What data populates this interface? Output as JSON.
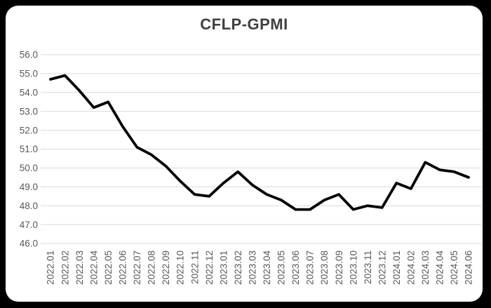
{
  "chart_data": {
    "type": "line",
    "title": "CFLP-GPMI",
    "categories": [
      "2022.01",
      "2022.02",
      "2022.03",
      "2022.04",
      "2022.05",
      "2022.06",
      "2022.07",
      "2022.08",
      "2022.09",
      "2022.10",
      "2022.11",
      "2022.12",
      "2023.01",
      "2023.02",
      "2023.03",
      "2023.04",
      "2023.05",
      "2023.06",
      "2023.07",
      "2023.08",
      "2023.09",
      "2023.10",
      "2023.11",
      "2023.12",
      "2024.01",
      "2024.02",
      "2024.03",
      "2024.04",
      "2024.05",
      "2024.06"
    ],
    "series": [
      {
        "name": "CFLP-GPMI",
        "values": [
          54.7,
          54.9,
          54.1,
          53.2,
          53.5,
          52.2,
          51.1,
          50.7,
          50.1,
          49.3,
          48.6,
          48.5,
          49.2,
          49.8,
          49.1,
          48.6,
          48.3,
          47.8,
          47.8,
          48.3,
          48.6,
          47.8,
          48.0,
          47.9,
          49.2,
          48.9,
          50.3,
          49.9,
          49.8,
          49.5
        ]
      }
    ],
    "ylim": [
      46.0,
      56.0
    ],
    "y_tick_step": 1.0,
    "y_tick_labels": [
      "56.0",
      "55.0",
      "54.0",
      "53.0",
      "52.0",
      "51.0",
      "50.0",
      "49.0",
      "48.0",
      "47.0",
      "46.0"
    ],
    "grid": "horizontal",
    "legend": "none",
    "x_label_rotation": 90
  },
  "style": {
    "background_color": "#000000",
    "panel_color": "#ffffff",
    "title_color": "#3f3f3f",
    "axis_label_color": "#595959",
    "gridline_color": "#d9d9d9",
    "line_color": "#000000",
    "line_width": 3.8
  }
}
